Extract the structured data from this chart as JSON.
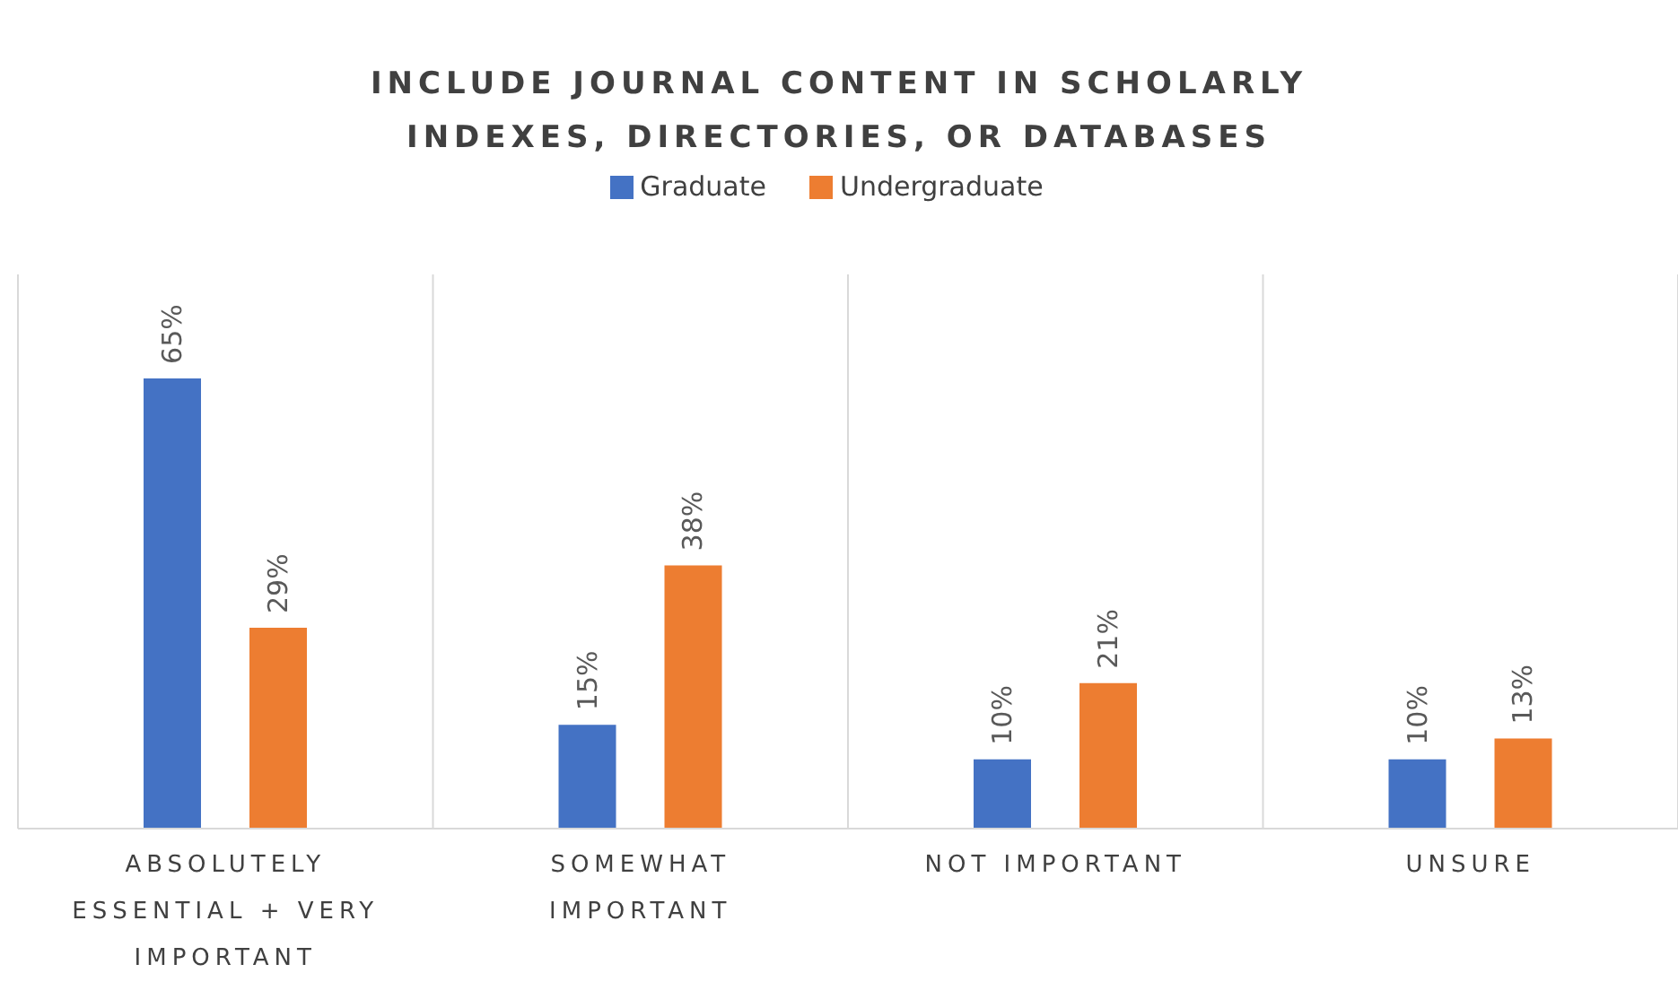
{
  "chart_data": {
    "type": "bar",
    "title": "INCLUDE JOURNAL CONTENT IN SCHOLARLY INDEXES, DIRECTORIES, OR DATABASES",
    "categories": [
      "ABSOLUTELY ESSENTIAL + VERY IMPORTANT",
      "SOMEWHAT IMPORTANT",
      "NOT IMPORTANT",
      "UNSURE"
    ],
    "series": [
      {
        "name": "Graduate",
        "color": "#4472c4",
        "values": [
          65,
          15,
          10,
          10
        ],
        "value_labels": [
          "65%",
          "15%",
          "10%",
          "10%"
        ]
      },
      {
        "name": "Undergraduate",
        "color": "#ed7d31",
        "values": [
          29,
          38,
          21,
          13
        ],
        "value_labels": [
          "29%",
          "38%",
          "21%",
          "13%"
        ]
      }
    ],
    "legend": "top",
    "grid": "x"
  }
}
